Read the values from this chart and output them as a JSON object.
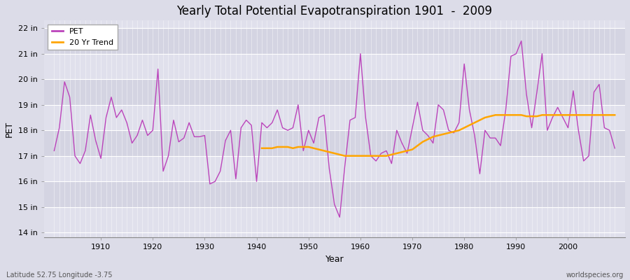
{
  "title": "Yearly Total Potential Evapotranspiration 1901  -  2009",
  "xlabel": "Year",
  "ylabel": "PET",
  "bottom_left_label": "Latitude 52.75 Longitude -3.75",
  "bottom_right_label": "worldspecies.org",
  "pet_color": "#bb44bb",
  "trend_color": "#FFA500",
  "background_color": "#dcdce8",
  "band_color_light": "#e8e8f0",
  "band_color_dark": "#d4d4e0",
  "grid_color": "#ffffff",
  "ylim": [
    13.8,
    22.3
  ],
  "ytick_labels": [
    "14 in",
    "15 in",
    "16 in",
    "17 in",
    "18 in",
    "19 in",
    "20 in",
    "21 in",
    "22 in"
  ],
  "ytick_values": [
    14,
    15,
    16,
    17,
    18,
    19,
    20,
    21,
    22
  ],
  "years": [
    1901,
    1902,
    1903,
    1904,
    1905,
    1906,
    1907,
    1908,
    1909,
    1910,
    1911,
    1912,
    1913,
    1914,
    1915,
    1916,
    1917,
    1918,
    1919,
    1920,
    1921,
    1922,
    1923,
    1924,
    1925,
    1926,
    1927,
    1928,
    1929,
    1930,
    1931,
    1932,
    1933,
    1934,
    1935,
    1936,
    1937,
    1938,
    1939,
    1940,
    1941,
    1942,
    1943,
    1944,
    1945,
    1946,
    1947,
    1948,
    1949,
    1950,
    1951,
    1952,
    1953,
    1954,
    1955,
    1956,
    1957,
    1958,
    1959,
    1960,
    1961,
    1962,
    1963,
    1964,
    1965,
    1966,
    1967,
    1968,
    1969,
    1970,
    1971,
    1972,
    1973,
    1974,
    1975,
    1976,
    1977,
    1978,
    1979,
    1980,
    1981,
    1982,
    1983,
    1984,
    1985,
    1986,
    1987,
    1988,
    1989,
    1990,
    1991,
    1992,
    1993,
    1994,
    1995,
    1996,
    1997,
    1998,
    1999,
    2000,
    2001,
    2002,
    2003,
    2004,
    2005,
    2006,
    2007,
    2008,
    2009
  ],
  "pet_values": [
    17.2,
    18.1,
    19.9,
    19.3,
    17.0,
    16.7,
    17.2,
    18.6,
    17.6,
    16.9,
    18.5,
    19.3,
    18.5,
    18.8,
    18.3,
    17.5,
    17.8,
    18.4,
    17.8,
    18.0,
    20.4,
    16.4,
    17.0,
    18.4,
    17.55,
    17.7,
    18.3,
    17.75,
    17.75,
    17.8,
    15.9,
    16.0,
    16.4,
    17.6,
    18.0,
    16.1,
    18.1,
    18.4,
    18.2,
    16.0,
    18.3,
    18.1,
    18.3,
    18.8,
    18.1,
    18.0,
    18.1,
    19.0,
    17.2,
    18.0,
    17.5,
    18.5,
    18.6,
    16.5,
    15.1,
    14.6,
    16.6,
    18.4,
    18.5,
    21.0,
    18.5,
    17.0,
    16.8,
    17.1,
    17.2,
    16.7,
    18.0,
    17.5,
    17.1,
    18.1,
    19.1,
    18.0,
    17.8,
    17.5,
    19.0,
    18.8,
    18.0,
    17.9,
    18.3,
    20.6,
    18.8,
    17.8,
    16.3,
    18.0,
    17.7,
    17.7,
    17.4,
    18.8,
    20.9,
    21.0,
    21.5,
    19.4,
    18.1,
    19.5,
    21.0,
    18.0,
    18.5,
    18.9,
    18.5,
    18.1,
    19.55,
    18.0,
    16.8,
    17.0,
    19.5,
    19.8,
    18.1,
    18.0,
    17.3
  ],
  "trend_values_years": [
    1941,
    1942,
    1943,
    1944,
    1945,
    1946,
    1947,
    1948,
    1949,
    1950,
    1951,
    1952,
    1953,
    1954,
    1955,
    1956,
    1957,
    1958,
    1959,
    1960,
    1961,
    1962,
    1963,
    1964,
    1965,
    1966,
    1967,
    1968,
    1969,
    1970,
    1971,
    1972,
    1973,
    1974,
    1975,
    1976,
    1977,
    1978,
    1979,
    1980,
    1981,
    1982,
    1983,
    1984,
    1985,
    1986,
    1987,
    1988,
    1989,
    1990,
    1991,
    1992,
    1993,
    1994,
    1995,
    1996,
    1997,
    1998,
    1999,
    2000,
    2001,
    2002,
    2003,
    2004,
    2005,
    2006,
    2007,
    2008,
    2009
  ],
  "trend_values": [
    17.3,
    17.3,
    17.3,
    17.35,
    17.35,
    17.35,
    17.3,
    17.35,
    17.35,
    17.35,
    17.3,
    17.25,
    17.2,
    17.15,
    17.1,
    17.05,
    17.0,
    17.0,
    17.0,
    17.0,
    17.0,
    17.0,
    17.0,
    17.0,
    17.0,
    17.05,
    17.1,
    17.15,
    17.2,
    17.25,
    17.4,
    17.55,
    17.65,
    17.75,
    17.8,
    17.85,
    17.9,
    17.95,
    18.0,
    18.1,
    18.2,
    18.3,
    18.4,
    18.5,
    18.55,
    18.6,
    18.6,
    18.6,
    18.6,
    18.6,
    18.6,
    18.55,
    18.55,
    18.55,
    18.6,
    18.6,
    18.6,
    18.6,
    18.6,
    18.6,
    18.6,
    18.6,
    18.6,
    18.6,
    18.6,
    18.6,
    18.6,
    18.6,
    18.6
  ]
}
